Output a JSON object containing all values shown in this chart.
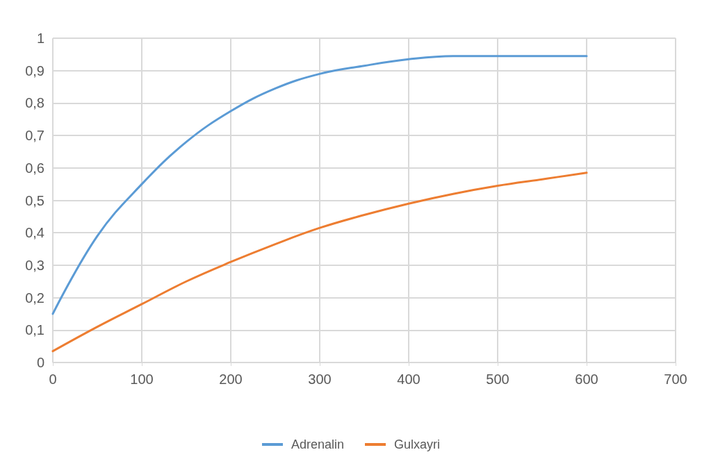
{
  "chart_data": {
    "type": "line",
    "x": [
      0,
      50,
      100,
      150,
      200,
      250,
      300,
      350,
      400,
      450,
      500,
      550,
      600
    ],
    "series": [
      {
        "name": "Adrenalin",
        "color": "#5b9bd5",
        "values": [
          0.15,
          0.39,
          0.55,
          0.68,
          0.775,
          0.845,
          0.89,
          0.915,
          0.935,
          0.945,
          0.945,
          0.945,
          0.945
        ]
      },
      {
        "name": "Gulxayri",
        "color": "#ed7d31",
        "values": [
          0.035,
          0.11,
          0.18,
          0.25,
          0.31,
          0.365,
          0.415,
          0.455,
          0.49,
          0.52,
          0.545,
          0.565,
          0.585
        ]
      }
    ],
    "xlim": [
      0,
      700
    ],
    "xticks": [
      0,
      100,
      200,
      300,
      400,
      500,
      600,
      700
    ],
    "ylim": [
      0,
      1
    ],
    "yticks": [
      0,
      {
        "value": 0.1,
        "label": "0,1"
      },
      {
        "value": 0.2,
        "label": "0,2"
      },
      {
        "value": 0.3,
        "label": "0,3"
      },
      {
        "value": 0.4,
        "label": "0,4"
      },
      {
        "value": 0.5,
        "label": "0,5"
      },
      {
        "value": 0.6,
        "label": "0,6"
      },
      {
        "value": 0.7,
        "label": "0,7"
      },
      {
        "value": 0.8,
        "label": "0,8"
      },
      {
        "value": 0.9,
        "label": "0,9"
      },
      1
    ],
    "grid": true,
    "legend": "bottom",
    "marker": "none",
    "line_style": "solid"
  }
}
